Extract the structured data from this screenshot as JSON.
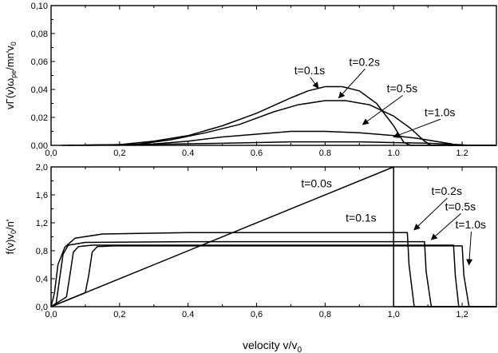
{
  "chart_data": [
    {
      "type": "line",
      "ylabel": "vΓ(v)ωpe/mn'v0",
      "xlim": [
        0,
        1.3
      ],
      "ylim": [
        0,
        0.1
      ],
      "x_tick_labels": [
        "0,0",
        "0,2",
        "0.4",
        "0.6",
        "0.8",
        "1.0",
        "1.2"
      ],
      "x_tick_values": [
        0,
        0.2,
        0.4,
        0.6,
        0.8,
        1.0,
        1.2
      ],
      "y_tick_labels": [
        "0,00",
        "0,02",
        "0,04",
        "0,06",
        "0,08",
        "0,10"
      ],
      "y_tick_values": [
        0,
        0.02,
        0.04,
        0.06,
        0.08,
        0.1
      ],
      "grid": false,
      "series": [
        {
          "name": "t=0.1s",
          "x": [
            0.03,
            0.2,
            0.3,
            0.4,
            0.5,
            0.6,
            0.7,
            0.75,
            0.8,
            0.85,
            0.9,
            0.95,
            1.0,
            1.03,
            1.05,
            1.3
          ],
          "values": [
            0,
            0.0005,
            0.003,
            0.007,
            0.014,
            0.023,
            0.034,
            0.039,
            0.042,
            0.042,
            0.039,
            0.03,
            0.014,
            0.002,
            0,
            0
          ]
        },
        {
          "name": "t=0.2s",
          "x": [
            0.05,
            0.25,
            0.35,
            0.45,
            0.55,
            0.65,
            0.72,
            0.8,
            0.86,
            0.93,
            1.0,
            1.05,
            1.09,
            1.11,
            1.3
          ],
          "values": [
            0,
            0.0007,
            0.004,
            0.009,
            0.015,
            0.024,
            0.029,
            0.032,
            0.032,
            0.029,
            0.021,
            0.012,
            0.003,
            0,
            0
          ]
        },
        {
          "name": "t=0.5s",
          "x": [
            0.08,
            0.3,
            0.4,
            0.5,
            0.6,
            0.7,
            0.8,
            0.9,
            1.0,
            1.07,
            1.12,
            1.17,
            1.19,
            1.3
          ],
          "values": [
            0,
            0.001,
            0.003,
            0.006,
            0.008,
            0.01,
            0.01,
            0.009,
            0.007,
            0.005,
            0.003,
            0.001,
            0,
            0
          ]
        },
        {
          "name": "t=1.0s",
          "x": [
            0.1,
            0.3,
            0.5,
            0.7,
            0.9,
            1.1,
            1.2,
            1.22,
            1.3
          ],
          "values": [
            0,
            0.0007,
            0.0015,
            0.0025,
            0.0025,
            0.0015,
            0.0004,
            0,
            0
          ]
        }
      ],
      "annotations": [
        {
          "text": "t=0.1s",
          "x": 0.71,
          "y": 0.051,
          "arrow_to": [
            0.78,
            0.041
          ]
        },
        {
          "text": "t=0.2s",
          "x": 0.87,
          "y": 0.057,
          "arrow_to": [
            0.84,
            0.034
          ]
        },
        {
          "text": "t=0.5s",
          "x": 0.98,
          "y": 0.038,
          "arrow_to": [
            0.91,
            0.015
          ]
        },
        {
          "text": "t=1.0s",
          "x": 1.09,
          "y": 0.021,
          "arrow_to": [
            1.0,
            0.006
          ]
        }
      ]
    },
    {
      "type": "line",
      "xlabel": "velocity v/v0",
      "ylabel": "f(v)v0/n'",
      "xlim": [
        0,
        1.3
      ],
      "ylim": [
        0,
        2.0
      ],
      "x_tick_labels": [
        "0,0",
        "0,2",
        "0.4",
        "0,6",
        "0,8",
        "1,0",
        "1,2"
      ],
      "x_tick_values": [
        0,
        0.2,
        0.4,
        0.6,
        0.8,
        1.0,
        1.2
      ],
      "y_tick_labels": [
        "0,0",
        "0,4",
        "0,8",
        "1,2",
        "1,6",
        "2,0"
      ],
      "y_tick_values": [
        0,
        0.4,
        0.8,
        1.2,
        1.6,
        2.0
      ],
      "grid": false,
      "series": [
        {
          "name": "t=0.0s",
          "x": [
            0,
            1.0,
            1.0,
            1.3
          ],
          "values": [
            0,
            2.0,
            0,
            0
          ]
        },
        {
          "name": "t=0.1s",
          "x": [
            0,
            0.01,
            0.02,
            0.04,
            0.07,
            0.15,
            0.4,
            0.7,
            1.0,
            1.04,
            1.045,
            1.06,
            1.3
          ],
          "values": [
            0,
            0.2,
            0.6,
            0.85,
            0.98,
            1.04,
            1.06,
            1.06,
            1.06,
            1.06,
            0.6,
            0,
            0
          ]
        },
        {
          "name": "t=0.2s",
          "x": [
            0,
            0.015,
            0.025,
            0.035,
            0.05,
            0.1,
            0.4,
            0.8,
            1.09,
            1.095,
            1.11,
            1.3
          ],
          "values": [
            0,
            0.05,
            0.4,
            0.75,
            0.88,
            0.92,
            0.93,
            0.93,
            0.93,
            0.5,
            0,
            0
          ]
        },
        {
          "name": "t=0.5s",
          "x": [
            0,
            0.045,
            0.055,
            0.065,
            0.08,
            0.12,
            0.5,
            0.9,
            1.175,
            1.18,
            1.19,
            1.3
          ],
          "values": [
            0,
            0.14,
            0.45,
            0.78,
            0.86,
            0.88,
            0.88,
            0.88,
            0.88,
            0.45,
            0,
            0
          ]
        },
        {
          "name": "t=1.0s",
          "x": [
            0,
            0.1,
            0.11,
            0.12,
            0.135,
            0.18,
            0.5,
            0.9,
            1.2,
            1.205,
            1.22,
            1.3
          ],
          "values": [
            0,
            0.2,
            0.45,
            0.78,
            0.86,
            0.87,
            0.87,
            0.87,
            0.87,
            0.45,
            0,
            0
          ]
        }
      ],
      "annotations": [
        {
          "text": "t=0.0s",
          "x": 0.73,
          "y": 1.71
        },
        {
          "text": "t=0.1s",
          "x": 0.86,
          "y": 1.22
        },
        {
          "text": "t=0.2s",
          "x": 1.11,
          "y": 1.6,
          "arrow_to": [
            1.06,
            1.1
          ]
        },
        {
          "text": "t=0.5s",
          "x": 1.15,
          "y": 1.38,
          "arrow_to": [
            1.11,
            0.96
          ]
        },
        {
          "text": "t=1.0s",
          "x": 1.18,
          "y": 1.12,
          "arrow_to": [
            1.22,
            0.6
          ]
        }
      ]
    }
  ]
}
